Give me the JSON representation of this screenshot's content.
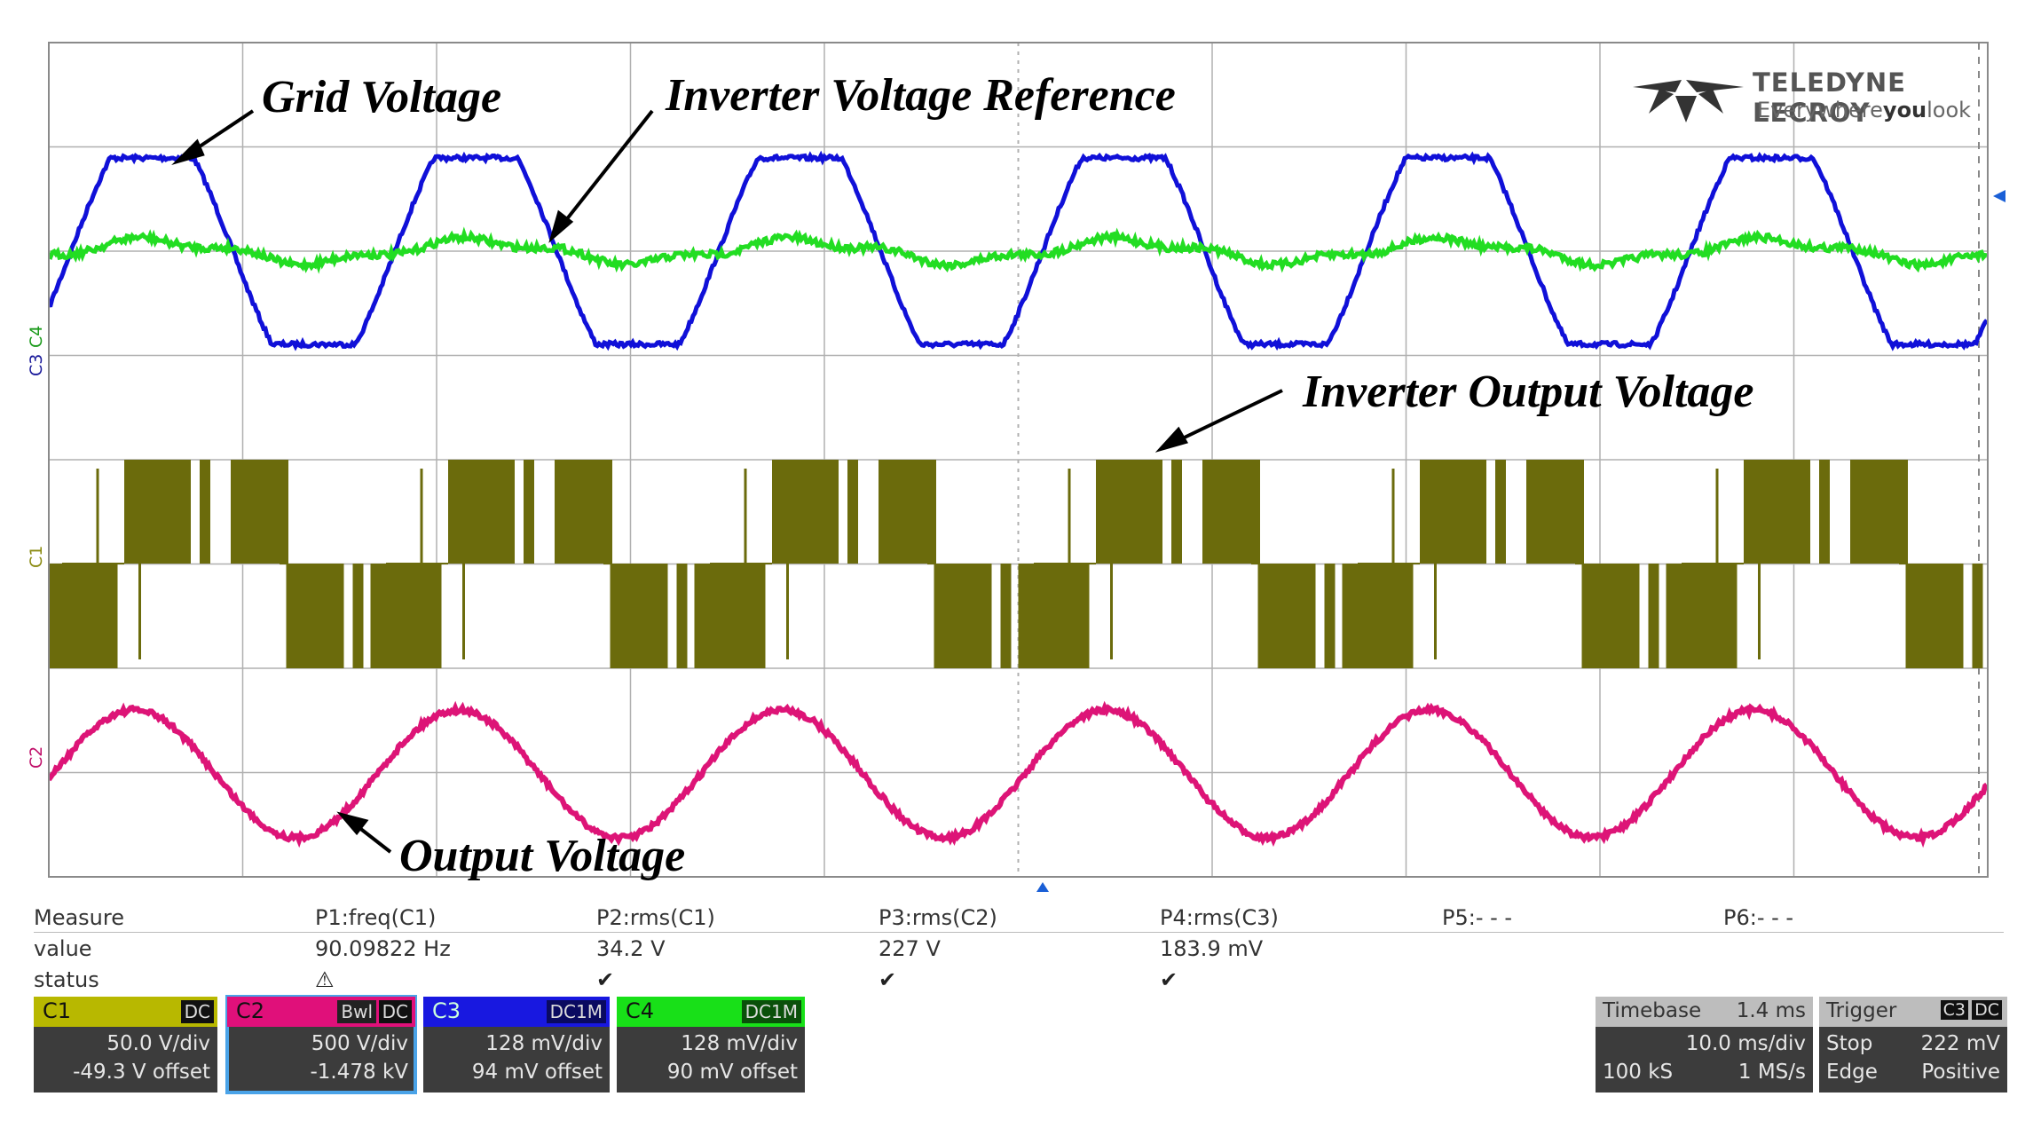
{
  "brand": {
    "name": "TELEDYNE LECROY",
    "tagline_pre": "Everywhere",
    "tagline_bold": "you",
    "tagline_post": "look"
  },
  "annotations": {
    "grid_voltage": "Grid Voltage",
    "inverter_voltage_reference": "Inverter Voltage Reference",
    "inverter_output_voltage": "Inverter Output Voltage",
    "output_voltage": "Output Voltage"
  },
  "traces": {
    "grid": {
      "color": "#1010d8"
    },
    "reference": {
      "color": "#22dd22"
    },
    "inverter_output": {
      "color": "#6b6b0c"
    },
    "output": {
      "color": "#dd1477"
    }
  },
  "trace_labels": {
    "c4": "C4",
    "c3": "C3",
    "c1": "C1",
    "c2": "C2"
  },
  "measure": {
    "row_labels": [
      "Measure",
      "value",
      "status"
    ],
    "params": [
      {
        "name": "P1:freq(C1)",
        "value": "90.09822 Hz",
        "status": "⚠"
      },
      {
        "name": "P2:rms(C1)",
        "value": "34.2 V",
        "status": "✔"
      },
      {
        "name": "P3:rms(C2)",
        "value": "227 V",
        "status": "✔"
      },
      {
        "name": "P4:rms(C3)",
        "value": "183.9 mV",
        "status": "✔"
      },
      {
        "name": "P5:- - -",
        "value": "",
        "status": ""
      },
      {
        "name": "P6:- - -",
        "value": "",
        "status": ""
      }
    ]
  },
  "channels": [
    {
      "label": "C1",
      "color": "#b8b800",
      "badge": "DC",
      "vdiv": "50.0 V/div",
      "offset": "-49.3 V offset",
      "selected": false
    },
    {
      "label": "C2",
      "color": "#e0107a",
      "badge": "DC",
      "badge2": "Bwl",
      "vdiv": "500 V/div",
      "offset": "-1.478 kV",
      "selected": true
    },
    {
      "label": "C3",
      "color": "#1818e0",
      "badge": "DC1M",
      "vdiv": "128 mV/div",
      "offset": "94 mV offset",
      "selected": false
    },
    {
      "label": "C4",
      "color": "#18e018",
      "badge": "DC1M",
      "vdiv": "128 mV/div",
      "offset": "90 mV offset",
      "selected": false
    }
  ],
  "timebase": {
    "label": "Timebase",
    "delay": "1.4 ms",
    "tdiv": "10.0 ms/div",
    "samples": "100 kS",
    "rate": "1 MS/s"
  },
  "trigger": {
    "label": "Trigger",
    "badge1": "C3",
    "badge2": "DC",
    "mode": "Stop",
    "level": "222 mV",
    "type": "Edge",
    "slope": "Positive"
  }
}
